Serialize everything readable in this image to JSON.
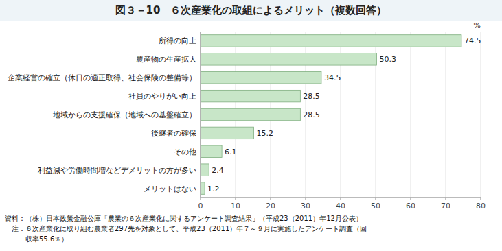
{
  "chart_data": {
    "type": "bar",
    "orientation": "horizontal",
    "title": "図３－10　６次産業化の取組によるメリット（複数回答）",
    "categories": [
      "所得の向上",
      "農産物の生産拡大",
      "企業経営の確立（休日の適正取得、社会保険の整備等）",
      "社員のやりがい向上",
      "地域からの支援確保（地域への基盤確立）",
      "後継者の確保",
      "その他",
      "利益減や労働時間増などデメリットの方が多い",
      "メリットはない"
    ],
    "values": [
      74.5,
      50.3,
      34.5,
      28.5,
      28.5,
      15.2,
      6.1,
      2.4,
      1.2
    ],
    "color": "#c8e6c8",
    "x_label": "%",
    "xlim": [
      0,
      80
    ],
    "xticks": [
      0,
      10,
      20,
      30,
      40,
      50,
      60,
      70,
      80
    ],
    "grid": true,
    "data_labels": true,
    "annotations": [
      "資料：（株）日本政策金融公庫「農業の６次産業化に関するアンケート調査結果」（平成23（2011）年12月公表）",
      "　注：６次産業化に取り組む農業者297先を対象として、平成23（2011）年７～９月に実施したアンケート調査（回",
      "　　　収率55.6％）"
    ]
  }
}
